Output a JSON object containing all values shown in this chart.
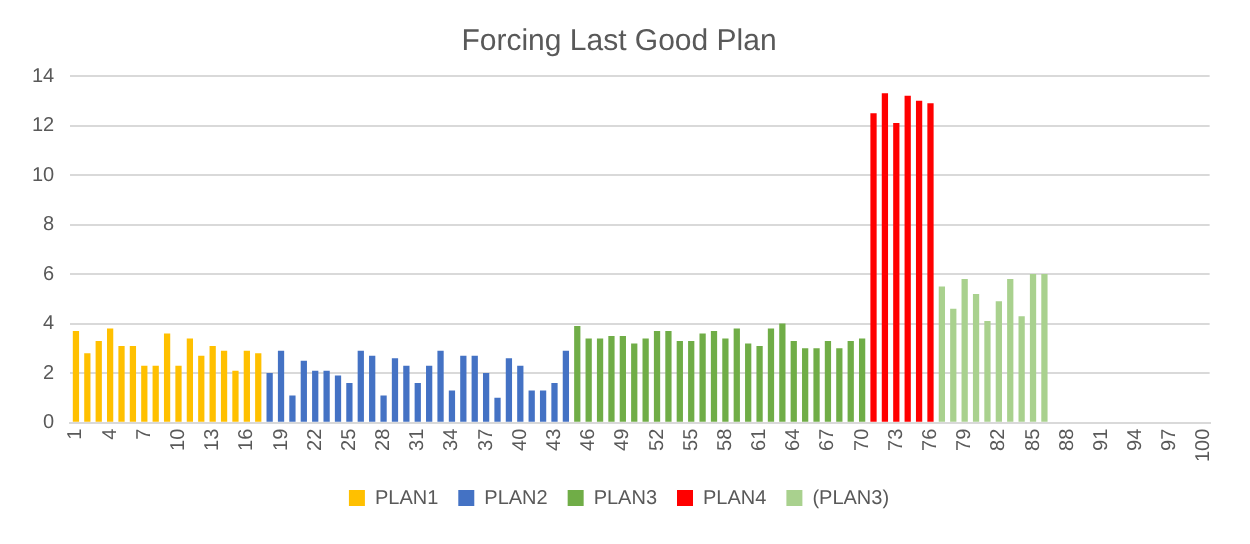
{
  "chart_data": {
    "type": "bar",
    "title": "Forcing Last Good Plan",
    "categories": [
      "1",
      null,
      null,
      "4",
      null,
      null,
      "7",
      null,
      null,
      "10",
      null,
      null,
      "13",
      null,
      null,
      "16",
      null,
      null,
      "19",
      null,
      null,
      "22",
      null,
      null,
      "25",
      null,
      null,
      "28",
      null,
      null,
      "31",
      null,
      null,
      "34",
      null,
      null,
      "37",
      null,
      null,
      "40",
      null,
      null,
      "43",
      null,
      null,
      "46",
      null,
      null,
      "49",
      null,
      null,
      "52",
      null,
      null,
      "55",
      null,
      null,
      "58",
      null,
      null,
      "61",
      null,
      null,
      "64",
      null,
      null,
      "67",
      null,
      null,
      "70",
      null,
      null,
      "73",
      null,
      null,
      "76",
      null,
      null,
      "79",
      null,
      null,
      "82",
      null,
      null,
      "85",
      null,
      null,
      "88",
      null,
      null,
      "91",
      null,
      null,
      "94",
      null,
      null,
      "97",
      null,
      null,
      "100"
    ],
    "series": [
      {
        "name": "PLAN1",
        "color": "#ffc000",
        "values": [
          3.7,
          2.8,
          3.3,
          3.8,
          3.1,
          3.1,
          2.3,
          2.3,
          3.6,
          2.3,
          3.4,
          2.7,
          3.1,
          2.9,
          2.1,
          2.9,
          2.8,
          null,
          null,
          null,
          null,
          null,
          null,
          null,
          null,
          null,
          null,
          null,
          null,
          null,
          null,
          null,
          null,
          null,
          null,
          null,
          null,
          null,
          null,
          null,
          null,
          null,
          null,
          null,
          null,
          null,
          null,
          null,
          null,
          null,
          null,
          null,
          null,
          null,
          null,
          null,
          null,
          null,
          null,
          null,
          null,
          null,
          null,
          null,
          null,
          null,
          null,
          null,
          null,
          null,
          null,
          null,
          null,
          null,
          null,
          null,
          null,
          null,
          null,
          null,
          null,
          null,
          null,
          null,
          null,
          null,
          null,
          null,
          null,
          null,
          null,
          null,
          null,
          null,
          null,
          null,
          null,
          null,
          null,
          null
        ]
      },
      {
        "name": "PLAN2",
        "color": "#4472c4",
        "values": [
          null,
          null,
          null,
          null,
          null,
          null,
          null,
          null,
          null,
          null,
          null,
          null,
          null,
          null,
          null,
          null,
          null,
          2.0,
          2.9,
          1.1,
          2.5,
          2.1,
          2.1,
          1.9,
          1.6,
          2.9,
          2.7,
          1.1,
          2.6,
          2.3,
          1.6,
          2.3,
          2.9,
          1.3,
          2.7,
          2.7,
          2.0,
          1.0,
          2.6,
          2.3,
          1.3,
          1.3,
          1.6,
          2.9,
          null,
          null,
          null,
          null,
          null,
          null,
          null,
          null,
          null,
          null,
          null,
          null,
          null,
          null,
          null,
          null,
          null,
          null,
          null,
          null,
          null,
          null,
          null,
          null,
          null,
          null,
          null,
          null,
          null,
          null,
          null,
          null,
          null,
          null,
          null,
          null,
          null,
          null,
          null,
          null,
          null,
          null,
          null,
          null,
          null,
          null,
          null,
          null,
          null,
          null,
          null,
          null,
          null,
          null,
          null,
          null
        ]
      },
      {
        "name": "PLAN3",
        "color": "#70ad47",
        "values": [
          null,
          null,
          null,
          null,
          null,
          null,
          null,
          null,
          null,
          null,
          null,
          null,
          null,
          null,
          null,
          null,
          null,
          null,
          null,
          null,
          null,
          null,
          null,
          null,
          null,
          null,
          null,
          null,
          null,
          null,
          null,
          null,
          null,
          null,
          null,
          null,
          null,
          null,
          null,
          null,
          null,
          null,
          null,
          null,
          3.9,
          3.4,
          3.4,
          3.5,
          3.5,
          3.2,
          3.4,
          3.7,
          3.7,
          3.3,
          3.3,
          3.6,
          3.7,
          3.4,
          3.8,
          3.2,
          3.1,
          3.8,
          4.0,
          3.3,
          3.0,
          3.0,
          3.3,
          3.0,
          3.3,
          3.4,
          null,
          null,
          null,
          null,
          null,
          null,
          null,
          null,
          null,
          null,
          null,
          null,
          null,
          null,
          null,
          null,
          null,
          null,
          null,
          null,
          null,
          null,
          null,
          null,
          null,
          null,
          null,
          null,
          null,
          null
        ]
      },
      {
        "name": "PLAN4",
        "color": "#ff0000",
        "values": [
          null,
          null,
          null,
          null,
          null,
          null,
          null,
          null,
          null,
          null,
          null,
          null,
          null,
          null,
          null,
          null,
          null,
          null,
          null,
          null,
          null,
          null,
          null,
          null,
          null,
          null,
          null,
          null,
          null,
          null,
          null,
          null,
          null,
          null,
          null,
          null,
          null,
          null,
          null,
          null,
          null,
          null,
          null,
          null,
          null,
          null,
          null,
          null,
          null,
          null,
          null,
          null,
          null,
          null,
          null,
          null,
          null,
          null,
          null,
          null,
          null,
          null,
          null,
          null,
          null,
          null,
          null,
          null,
          null,
          null,
          12.5,
          13.3,
          12.1,
          13.2,
          13.0,
          12.9,
          null,
          null,
          null,
          null,
          null,
          null,
          null,
          null,
          null,
          null,
          null,
          null,
          null,
          null,
          null,
          null,
          null,
          null,
          null,
          null,
          null,
          null,
          null,
          null
        ]
      },
      {
        "name": "(PLAN3)",
        "color": "#a9d18e",
        "values": [
          null,
          null,
          null,
          null,
          null,
          null,
          null,
          null,
          null,
          null,
          null,
          null,
          null,
          null,
          null,
          null,
          null,
          null,
          null,
          null,
          null,
          null,
          null,
          null,
          null,
          null,
          null,
          null,
          null,
          null,
          null,
          null,
          null,
          null,
          null,
          null,
          null,
          null,
          null,
          null,
          null,
          null,
          null,
          null,
          null,
          null,
          null,
          null,
          null,
          null,
          null,
          null,
          null,
          null,
          null,
          null,
          null,
          null,
          null,
          null,
          null,
          null,
          null,
          null,
          null,
          null,
          null,
          null,
          null,
          null,
          null,
          null,
          null,
          null,
          null,
          null,
          5.5,
          4.6,
          5.8,
          5.2,
          4.1,
          4.9,
          5.8,
          4.3,
          6.0,
          6.0,
          null,
          null,
          null,
          null,
          null,
          null,
          null,
          null,
          null,
          null,
          null,
          null,
          null,
          null
        ]
      }
    ],
    "ylim": [
      0,
      14
    ],
    "yticks": [
      0,
      2,
      4,
      6,
      8,
      10,
      12,
      14
    ],
    "grid": "y",
    "legend": "bottom"
  }
}
